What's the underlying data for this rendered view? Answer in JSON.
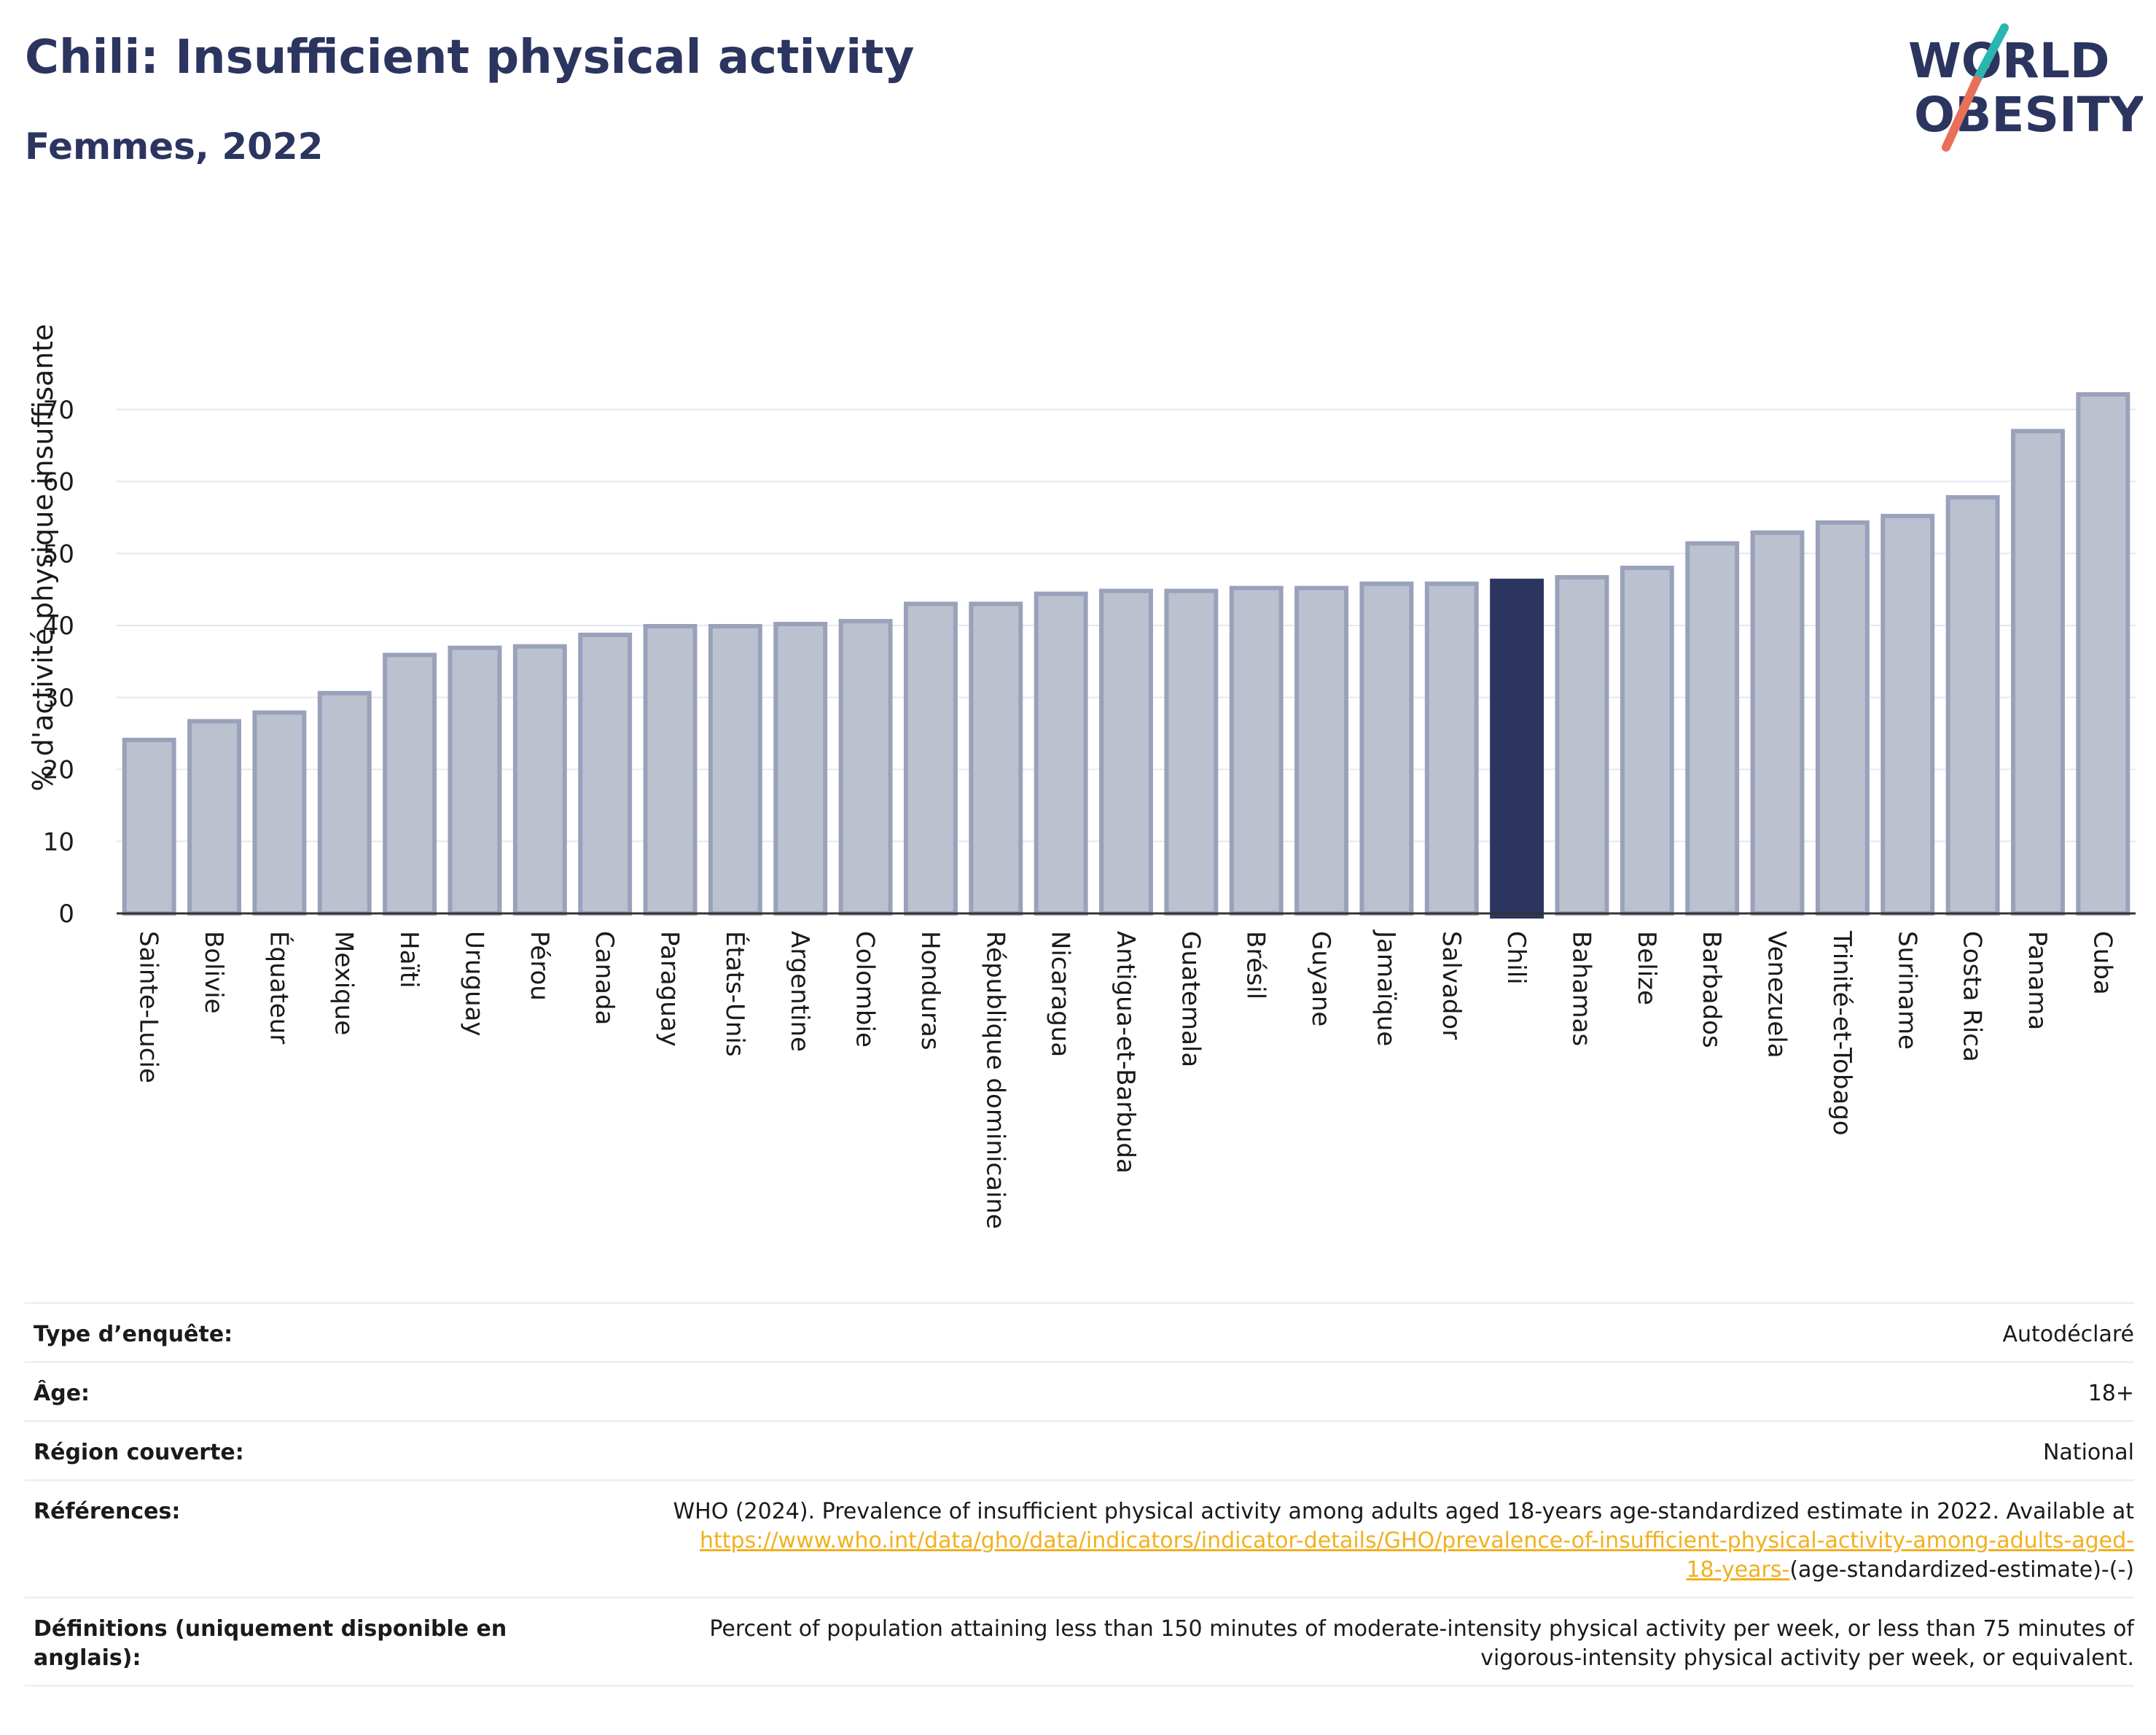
{
  "header": {
    "title": "Chili: Insufficient physical activity",
    "subtitle": "Femmes, 2022"
  },
  "logo": {
    "line1": "WORLD",
    "line2": "OBESITY",
    "slash_colors": [
      "#2ab5b0",
      "#e8705a"
    ]
  },
  "chart_data": {
    "type": "bar",
    "title": "Chili: Insufficient physical activity",
    "subtitle": "Femmes, 2022",
    "ylabel": "% d'activité physique insuffisante",
    "xlabel": "",
    "ylim": [
      0,
      72
    ],
    "yticks": [
      0,
      10,
      20,
      30,
      40,
      50,
      60,
      70
    ],
    "grid": true,
    "highlight": "Chili",
    "colors": {
      "bar": "#bcc1d0",
      "bar_edge": "#9aa1ba",
      "highlight": "#2b3560"
    },
    "categories": [
      "Sainte-Lucie",
      "Bolivie",
      "Équateur",
      "Mexique",
      "Haïti",
      "Uruguay",
      "Pérou",
      "Canada",
      "Paraguay",
      "États-Unis",
      "Argentine",
      "Colombie",
      "Honduras",
      "République dominicaine",
      "Nicaragua",
      "Antigua-et-Barbuda",
      "Guatemala",
      "Brésil",
      "Guyane",
      "Jamaïque",
      "Salvador",
      "Chili",
      "Bahamas",
      "Belize",
      "Barbados",
      "Venezuela",
      "Trinité-et-Tobago",
      "Suriname",
      "Costa Rica",
      "Panama",
      "Cuba"
    ],
    "values": [
      24.1,
      26.7,
      27.9,
      30.6,
      35.9,
      36.9,
      37.1,
      38.7,
      39.9,
      39.9,
      40.2,
      40.6,
      43.0,
      43.0,
      44.4,
      44.8,
      44.8,
      45.2,
      45.2,
      45.8,
      45.8,
      46.2,
      46.7,
      48.0,
      51.4,
      52.9,
      54.3,
      55.2,
      57.8,
      67.0,
      72.1
    ]
  },
  "info": {
    "rows": [
      {
        "label": "Type d’enquête:",
        "value": "Autodéclaré"
      },
      {
        "label": "Âge:",
        "value": "18+"
      },
      {
        "label": "Région couverte:",
        "value": "National"
      },
      {
        "label": "Références:",
        "value": "WHO (2024). Prevalence of insufficient physical activity among adults aged 18-years age-standardized estimate in 2022. Available at",
        "link_line1": "https://www.who.int/data/gho/data/indicators/indicator-details/GHO/prevalence-of-insufficient-physical-activity-among-adults-aged-",
        "link_line2": "18-years-",
        "suffix": "(age-standardized-estimate)-(-)"
      },
      {
        "label": "Définitions (uniquement disponible en anglais):",
        "value": "Percent of population attaining less than 150 minutes of moderate-intensity physical activity per week, or less than 75 minutes of vigorous-intensity physical activity per week, or equivalent."
      }
    ]
  }
}
